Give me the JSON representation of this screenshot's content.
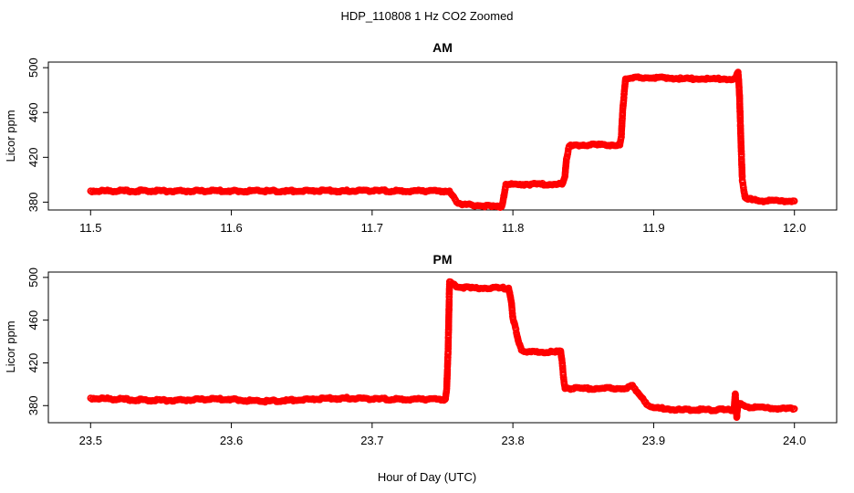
{
  "chart_data": {
    "title": "HDP_110808  1 Hz CO2 Zoomed",
    "xlabel": "Hour of Day (UTC)",
    "marker_color": "#ff0000",
    "panels": [
      {
        "type": "scatter",
        "title": "AM",
        "ylabel": "Licor ppm",
        "xlim": [
          11.47,
          12.03
        ],
        "ylim": [
          373,
          505
        ],
        "xticks": [
          11.5,
          11.6,
          11.7,
          11.8,
          11.9,
          12.0
        ],
        "xtick_labels": [
          "11.5",
          "11.6",
          "11.7",
          "11.8",
          "11.9",
          "12.0"
        ],
        "yticks": [
          380,
          420,
          460,
          500
        ],
        "ytick_labels": [
          "380",
          "420",
          "460",
          "500"
        ],
        "series": [
          {
            "x": [
              11.5,
              11.52,
              11.54,
              11.56,
              11.58,
              11.6,
              11.62,
              11.64,
              11.66,
              11.68,
              11.7,
              11.72,
              11.74,
              11.755,
              11.757,
              11.76,
              11.765,
              11.775,
              11.785,
              11.792,
              11.793,
              11.795,
              11.8,
              11.81,
              11.82,
              11.83,
              11.835,
              11.837,
              11.838,
              11.84,
              11.85,
              11.86,
              11.87,
              11.876,
              11.877,
              11.878,
              11.88,
              11.89,
              11.9,
              11.91,
              11.92,
              11.93,
              11.94,
              11.95,
              11.958,
              11.96,
              11.961,
              11.962,
              11.963,
              11.965,
              11.97,
              11.98,
              11.99,
              12.0
            ],
            "y": [
              390,
              390,
              390,
              390,
              390,
              390,
              390,
              390,
              390,
              390,
              390,
              390,
              390,
              390,
              386,
              380,
              378,
              377,
              376,
              376,
              381,
              396,
              396,
              396,
              396,
              396,
              396,
              403,
              418,
              430,
              431,
              431,
              431,
              431,
              438,
              462,
              490,
              491,
              491,
              491,
              490,
              490,
              490,
              490,
              490,
              496,
              475,
              434,
              399,
              384,
              382,
              381,
              381,
              381
            ]
          }
        ]
      },
      {
        "type": "scatter",
        "title": "PM",
        "ylabel": "Licor ppm",
        "xlim": [
          23.47,
          24.03
        ],
        "ylim": [
          364,
          505
        ],
        "xticks": [
          23.5,
          23.6,
          23.7,
          23.8,
          23.9,
          24.0
        ],
        "xtick_labels": [
          "23.5",
          "23.6",
          "23.7",
          "23.8",
          "23.9",
          "24.0"
        ],
        "yticks": [
          380,
          420,
          460,
          500
        ],
        "ytick_labels": [
          "380",
          "420",
          "460",
          "500"
        ],
        "series": [
          {
            "x": [
              23.5,
              23.52,
              23.54,
              23.56,
              23.58,
              23.6,
              23.62,
              23.64,
              23.66,
              23.68,
              23.7,
              23.72,
              23.74,
              23.752,
              23.753,
              23.754,
              23.755,
              23.76,
              23.77,
              23.78,
              23.79,
              23.797,
              23.799,
              23.8,
              23.802,
              23.804,
              23.806,
              23.81,
              23.82,
              23.83,
              23.834,
              23.835,
              23.836,
              23.837,
              23.84,
              23.85,
              23.86,
              23.87,
              23.88,
              23.885,
              23.89,
              23.895,
              23.9,
              23.91,
              23.92,
              23.94,
              23.95,
              23.957,
              23.958,
              23.959,
              23.96,
              23.97,
              23.98,
              23.99,
              24.0
            ],
            "y": [
              387,
              386,
              385,
              385,
              386,
              386,
              384,
              385,
              386,
              387,
              386,
              386,
              386,
              386,
              396,
              433,
              496,
              491,
              490,
              490,
              490,
              490,
              476,
              462,
              452,
              440,
              432,
              430,
              430,
              430,
              431,
              420,
              406,
              396,
              396,
              396,
              396,
              396,
              396,
              399,
              390,
              381,
              378,
              377,
              376,
              376,
              376,
              376,
              391,
              369,
              382,
              378,
              378,
              377,
              377
            ]
          }
        ]
      }
    ]
  }
}
